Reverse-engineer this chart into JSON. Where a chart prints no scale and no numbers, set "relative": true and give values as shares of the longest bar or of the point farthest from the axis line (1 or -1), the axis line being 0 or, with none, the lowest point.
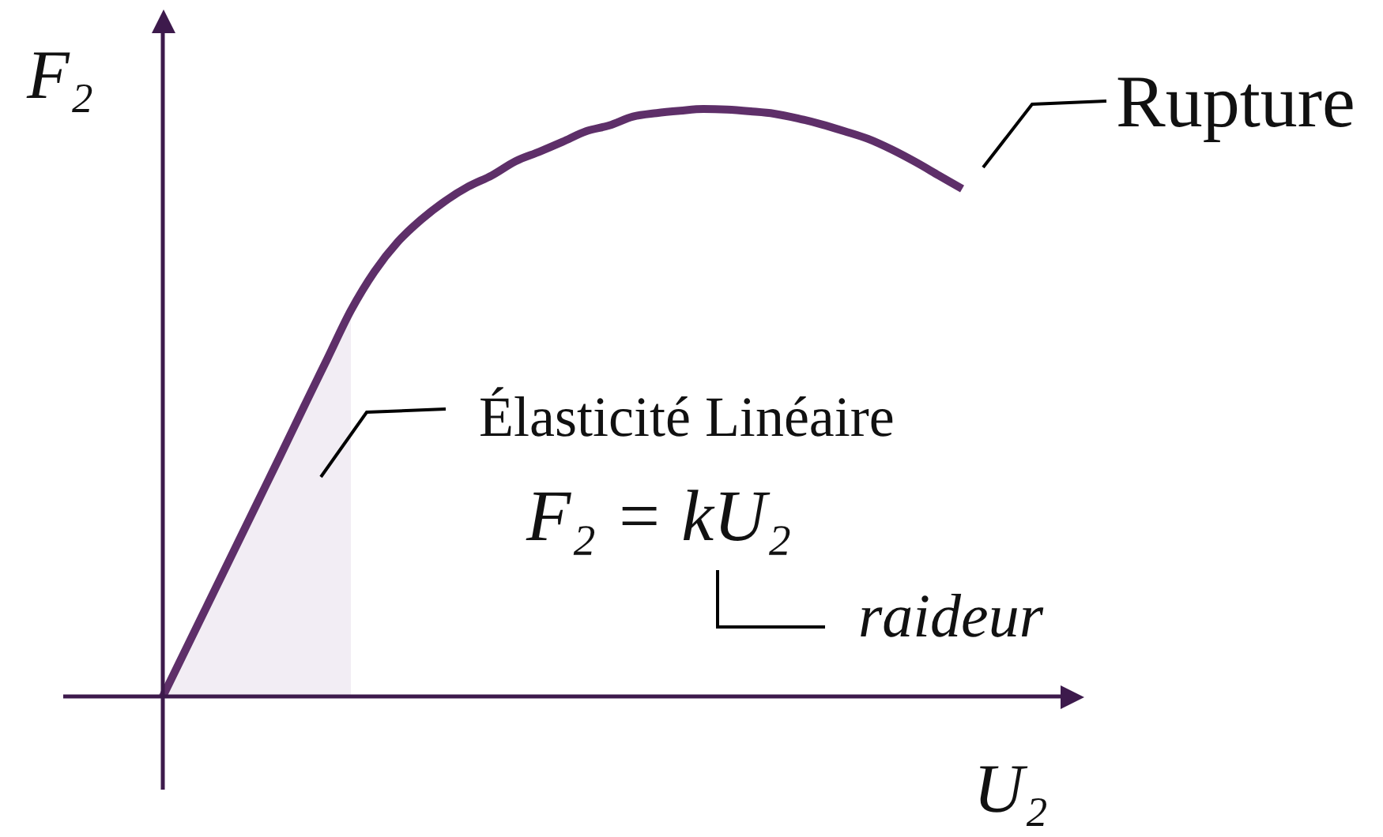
{
  "chart_data": {
    "type": "line",
    "relative": true,
    "xlabel": "U₂",
    "ylabel": "F₂",
    "categories": [
      null,
      null,
      null,
      null,
      null,
      null,
      null,
      null,
      null,
      null,
      null,
      null,
      null,
      null,
      null,
      null,
      null,
      null,
      null,
      null,
      null,
      null,
      null,
      null,
      null,
      null,
      null,
      null,
      null,
      null,
      null,
      null,
      null,
      null,
      null
    ],
    "series": [
      {
        "type": "area",
        "color": "#f2edf4",
        "values": [
          0,
          0.082,
          0.164,
          0.246,
          0.328,
          0.41,
          0.493,
          0.575,
          0.657,
          null,
          null,
          null,
          null,
          null,
          null,
          null,
          null,
          null,
          null,
          null,
          null,
          null,
          null,
          null,
          null,
          null,
          null,
          null,
          null,
          null,
          null,
          null,
          null,
          null,
          null
        ]
      },
      {
        "color": "#5e2f69",
        "values": [
          0,
          0.082,
          0.164,
          0.246,
          0.328,
          0.41,
          0.493,
          0.575,
          0.657,
          0.723,
          0.774,
          0.812,
          0.843,
          0.868,
          0.887,
          0.911,
          0.927,
          0.944,
          0.962,
          0.972,
          0.987,
          0.993,
          0.997,
          1,
          0.999,
          0.996,
          0.992,
          0.984,
          0.974,
          0.962,
          0.949,
          0.931,
          0.91,
          0.887,
          0.864
        ]
      }
    ],
    "annotations": [
      "Rupture",
      "Élasticité Linéaire",
      "F₂ = kU₂",
      "raideur"
    ]
  }
}
